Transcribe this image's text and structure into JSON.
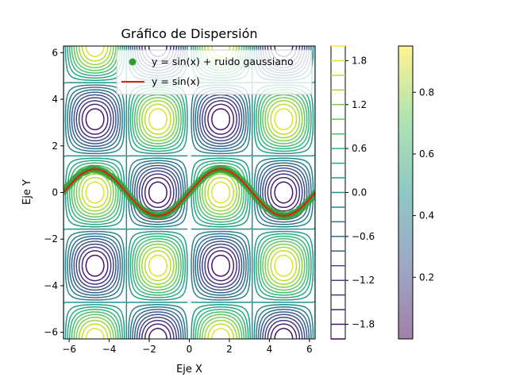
{
  "chart_data": {
    "type": "scatter",
    "title": "Gráfico de Dispersión",
    "xlabel": "Eje X",
    "ylabel": "Eje Y",
    "xlim": [
      -6.2832,
      6.2832
    ],
    "ylim": [
      -6.2832,
      6.2832
    ],
    "x_ticks": [
      -6,
      -4,
      -2,
      0,
      2,
      4,
      6
    ],
    "y_ticks": [
      -6,
      -4,
      -2,
      0,
      2,
      4,
      6
    ],
    "x_tick_labels": [
      "−6",
      "−4",
      "−2",
      "0",
      "2",
      "4",
      "6"
    ],
    "y_tick_labels": [
      "−6",
      "−4",
      "−2",
      "0",
      "2",
      "4",
      "6"
    ],
    "grid": false,
    "legend": {
      "placement": "top-right",
      "entries": [
        {
          "label": "y = sin(x) + ruido gaussiano",
          "marker": "circle",
          "color": "#2ca02c"
        },
        {
          "label": "y = sin(x)",
          "marker": "line",
          "color": "#e41a1c"
        }
      ]
    },
    "contour": {
      "function": "sin(x)*cos(y)*2",
      "levels": [
        -2.0,
        -1.8,
        -1.6,
        -1.4,
        -1.2,
        -1.0,
        -0.8,
        -0.6,
        -0.4,
        -0.2,
        0.0,
        0.2,
        0.4,
        0.6,
        0.8,
        1.0,
        1.2,
        1.4,
        1.6,
        1.8,
        2.0
      ],
      "colormap": "viridis",
      "colorbar_ticks": [
        -1.8,
        -1.2,
        -0.6,
        0.0,
        0.6,
        1.2,
        1.8
      ],
      "colorbar_tick_labels": [
        "−1.8",
        "−1.2",
        "−0.6",
        "0.0",
        "0.6",
        "1.2",
        "1.8"
      ],
      "colorbar_range": [
        -2.0,
        2.0
      ]
    },
    "scatter_colorbar": {
      "colormap": "viridis",
      "alpha": 0.5,
      "range": [
        0.0,
        0.95
      ],
      "ticks": [
        0.2,
        0.4,
        0.6,
        0.8
      ],
      "tick_labels": [
        "0.2",
        "0.4",
        "0.6",
        "0.8"
      ]
    },
    "series": [
      {
        "name": "y = sin(x) + ruido gaussiano",
        "kind": "scatter",
        "x": [
          -6.28,
          -6.15,
          -6.02,
          -5.89,
          -5.77,
          -5.64,
          -5.51,
          -5.38,
          -5.25,
          -5.13,
          -5.0,
          -4.87,
          -4.74,
          -4.61,
          -4.49,
          -4.36,
          -4.23,
          -4.1,
          -3.97,
          -3.85,
          -3.72,
          -3.59,
          -3.46,
          -3.33,
          -3.21,
          -3.08,
          -2.95,
          -2.82,
          -2.69,
          -2.57,
          -2.44,
          -2.31,
          -2.18,
          -2.05,
          -1.93,
          -1.8,
          -1.67,
          -1.54,
          -1.41,
          -1.29,
          -1.16,
          -1.03,
          -0.9,
          -0.77,
          -0.65,
          -0.52,
          -0.39,
          -0.26,
          -0.13,
          0.0,
          0.13,
          0.26,
          0.39,
          0.52,
          0.65,
          0.77,
          0.9,
          1.03,
          1.16,
          1.29,
          1.41,
          1.54,
          1.67,
          1.8,
          1.93,
          2.05,
          2.18,
          2.31,
          2.44,
          2.57,
          2.69,
          2.82,
          2.95,
          3.08,
          3.21,
          3.33,
          3.46,
          3.59,
          3.72,
          3.85,
          3.97,
          4.1,
          4.23,
          4.36,
          4.49,
          4.61,
          4.74,
          4.87,
          5.0,
          5.13,
          5.25,
          5.38,
          5.51,
          5.64,
          5.77,
          5.89,
          6.02,
          6.15,
          6.28
        ],
        "y": [
          0.05,
          0.2,
          0.3,
          0.42,
          0.55,
          0.65,
          0.72,
          0.85,
          0.88,
          0.92,
          0.97,
          1.02,
          0.98,
          1.0,
          0.95,
          0.92,
          0.88,
          0.8,
          0.7,
          0.66,
          0.56,
          0.45,
          0.33,
          0.2,
          0.08,
          -0.06,
          -0.2,
          -0.33,
          -0.45,
          -0.55,
          -0.66,
          -0.75,
          -0.82,
          -0.88,
          -0.93,
          -0.97,
          -0.99,
          -1.0,
          -0.99,
          -0.96,
          -0.92,
          -0.86,
          -0.78,
          -0.7,
          -0.6,
          -0.5,
          -0.38,
          -0.25,
          -0.13,
          0.0,
          0.13,
          0.25,
          0.38,
          0.5,
          0.6,
          0.7,
          0.78,
          0.86,
          0.92,
          0.96,
          0.99,
          1.0,
          0.99,
          0.97,
          0.93,
          0.88,
          0.82,
          0.75,
          0.66,
          0.55,
          0.45,
          0.33,
          0.2,
          0.06,
          -0.08,
          -0.2,
          -0.33,
          -0.45,
          -0.56,
          -0.66,
          -0.7,
          -0.8,
          -0.88,
          -0.92,
          -0.95,
          -1.0,
          -0.98,
          -1.02,
          -0.97,
          -0.92,
          -0.88,
          -0.85,
          -0.72,
          -0.65,
          -0.55,
          -0.42,
          -0.3,
          -0.2,
          -0.05
        ],
        "color": "#2ca02c"
      },
      {
        "name": "y = sin(x)",
        "kind": "line",
        "function": "sin(x)",
        "color": "#e41a1c"
      }
    ]
  }
}
